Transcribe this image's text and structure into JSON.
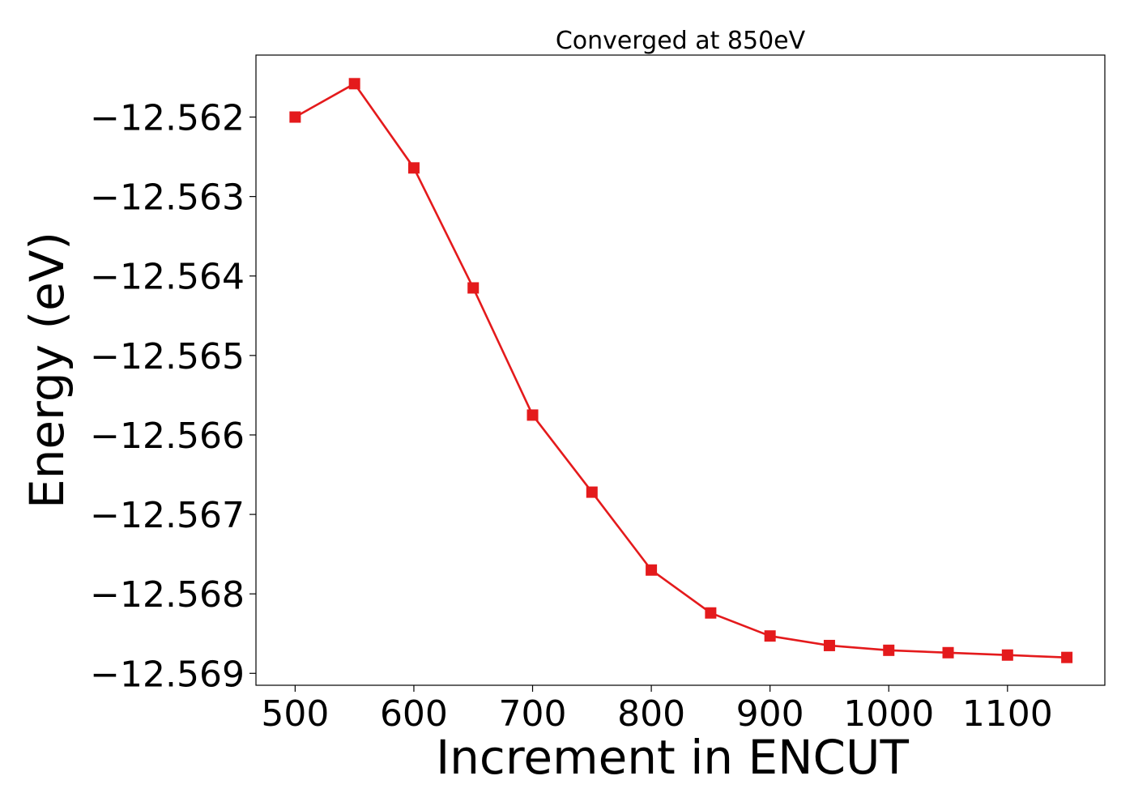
{
  "chart_data": {
    "type": "line",
    "title": "Converged at 850eV",
    "xlabel": "Increment in ENCUT",
    "ylabel": "Energy (eV)",
    "xlim": [
      467,
      1182
    ],
    "ylim": [
      -12.56915,
      -12.56122
    ],
    "x_ticks": [
      500,
      600,
      700,
      800,
      900,
      1000,
      1100
    ],
    "x_tick_labels": [
      "500",
      "600",
      "700",
      "800",
      "900",
      "1000",
      "1100"
    ],
    "y_ticks": [
      -12.562,
      -12.563,
      -12.564,
      -12.565,
      -12.566,
      -12.567,
      -12.568,
      -12.569
    ],
    "y_tick_labels": [
      "−12.562",
      "−12.563",
      "−12.564",
      "−12.565",
      "−12.566",
      "−12.567",
      "−12.568",
      "−12.569"
    ],
    "grid": false,
    "series": [
      {
        "color": "#e41a1c",
        "marker": "square",
        "x": [
          500,
          550,
          600,
          650,
          700,
          750,
          800,
          850,
          900,
          950,
          1000,
          1050,
          1100,
          1150
        ],
        "y": [
          -12.562,
          -12.56158,
          -12.56264,
          -12.56415,
          -12.56575,
          -12.56672,
          -12.5677,
          -12.56824,
          -12.56853,
          -12.56865,
          -12.56871,
          -12.56874,
          -12.56877,
          -12.5688
        ]
      }
    ]
  }
}
